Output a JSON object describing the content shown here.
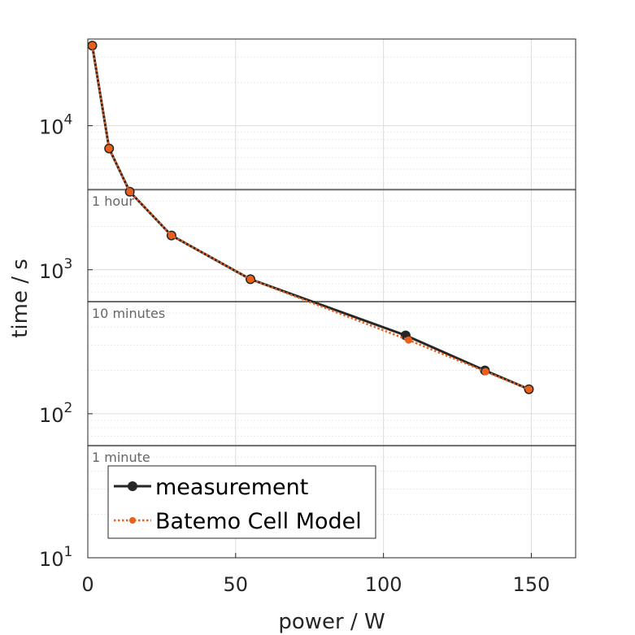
{
  "chart_data": {
    "type": "line",
    "xlabel": "power / W",
    "ylabel": "time / s",
    "xlim": [
      0,
      165
    ],
    "ylim": [
      10,
      40000
    ],
    "yscale": "log",
    "grid": true,
    "x_ticks": [
      0,
      50,
      100,
      150
    ],
    "y_ticks": [
      {
        "value": 10,
        "base": "10",
        "exp": "1"
      },
      {
        "value": 100,
        "base": "10",
        "exp": "2"
      },
      {
        "value": 1000,
        "base": "10",
        "exp": "3"
      },
      {
        "value": 10000,
        "base": "10",
        "exp": "4"
      }
    ],
    "reference_lines": [
      {
        "label": "1 hour",
        "y": 3600
      },
      {
        "label": "10 minutes",
        "y": 600
      },
      {
        "label": "1 minute",
        "y": 60
      }
    ],
    "series": [
      {
        "name": "measurement",
        "color": "#262626",
        "style": "solid",
        "marker": "large-circle",
        "points": [
          [
            1.5,
            36000
          ],
          [
            7.2,
            6950
          ],
          [
            14.2,
            3480
          ],
          [
            28.3,
            1730
          ],
          [
            55,
            860
          ],
          [
            107.5,
            350
          ],
          [
            134.3,
            200
          ],
          [
            149.2,
            148
          ]
        ]
      },
      {
        "name": "Batemo Cell Model",
        "color": "#e8601c",
        "style": "dotted",
        "marker": "small-circle",
        "points": [
          [
            1.5,
            36000
          ],
          [
            7.2,
            6950
          ],
          [
            14.2,
            3480
          ],
          [
            28.3,
            1730
          ],
          [
            55,
            860
          ],
          [
            108.5,
            325
          ],
          [
            134.5,
            196
          ],
          [
            149.2,
            148
          ]
        ]
      }
    ],
    "legend_position": "bottom-left"
  }
}
